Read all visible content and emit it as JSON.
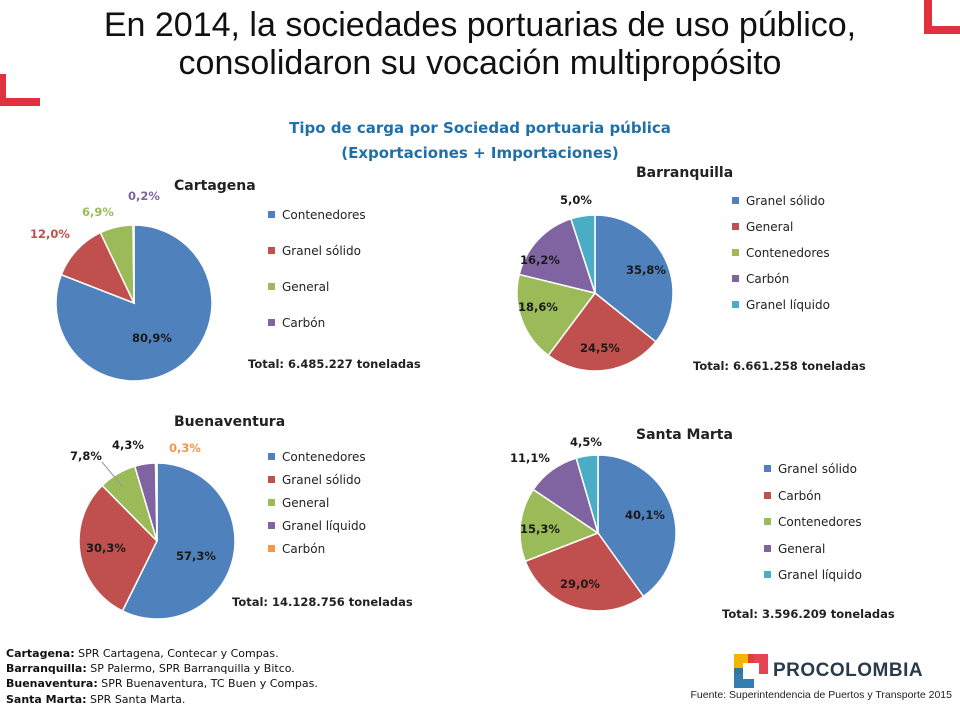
{
  "header": {
    "title_line1": "En 2014, la sociedades portuarias de uso público,",
    "title_line2": "consolidaron su vocación multipropósito",
    "subtitle_line1": "Tipo de carga por Sociedad portuaria pública",
    "subtitle_line2": "(Exportaciones + Importaciones)"
  },
  "colors": {
    "blue": "#4F81BD",
    "red": "#C0504D",
    "green": "#9BBB59",
    "purple": "#8064A2",
    "cyan": "#4BACC6",
    "orange": "#F79646",
    "accent": "#E0313F",
    "subtitle": "#1F6FA8"
  },
  "chart_data": [
    {
      "type": "pie",
      "title": "Cartagena",
      "total": "Total: 6.485.227  toneladas",
      "labels": [
        "Contenedores",
        "Granel sólido",
        "General",
        "Carbón"
      ],
      "values": [
        80.9,
        12.0,
        6.9,
        0.2
      ],
      "value_labels": [
        "80,9%",
        "12,0%",
        "6,9%",
        "0,2%"
      ],
      "colors": [
        "#4F81BD",
        "#C0504D",
        "#9BBB59",
        "#8064A2"
      ]
    },
    {
      "type": "pie",
      "title": "Barranquilla",
      "total": "Total: 6.661.258  toneladas",
      "labels": [
        "Granel sólido",
        "General",
        "Contenedores",
        "Carbón",
        "Granel líquido"
      ],
      "values": [
        35.8,
        24.5,
        18.6,
        16.2,
        5.0
      ],
      "value_labels": [
        "35,8%",
        "24,5%",
        "18,6%",
        "16,2%",
        "5,0%"
      ],
      "colors": [
        "#4F81BD",
        "#C0504D",
        "#9BBB59",
        "#8064A2",
        "#4BACC6"
      ]
    },
    {
      "type": "pie",
      "title": "Buenaventura",
      "total": "Total: 14.128.756  toneladas",
      "labels": [
        "Contenedores",
        "Granel sólido",
        "General",
        "Granel líquido",
        "Carbón"
      ],
      "values": [
        57.3,
        30.3,
        7.8,
        4.3,
        0.3
      ],
      "value_labels": [
        "57,3%",
        "30,3%",
        "7,8%",
        "4,3%",
        "0,3%"
      ],
      "colors": [
        "#4F81BD",
        "#C0504D",
        "#9BBB59",
        "#8064A2",
        "#F79646"
      ]
    },
    {
      "type": "pie",
      "title": "Santa Marta",
      "total": "Total: 3.596.209  toneladas",
      "labels": [
        "Granel sólido",
        "Carbón",
        "Contenedores",
        "General",
        "Granel líquido"
      ],
      "values": [
        40.1,
        29.0,
        15.3,
        11.1,
        4.5
      ],
      "value_labels": [
        "40,1%",
        "29,0%",
        "15,3%",
        "11,1%",
        "4,5%"
      ],
      "colors": [
        "#4F81BD",
        "#C0504D",
        "#9BBB59",
        "#8064A2",
        "#4BACC6"
      ]
    }
  ],
  "notes": [
    {
      "port": "Cartagena:",
      "text": " SPR Cartagena, Contecar y Compas."
    },
    {
      "port": "Barranquilla:",
      "text": " SP Palermo, SPR Barranquilla y Bitco."
    },
    {
      "port": "Buenaventura:",
      "text": " SPR Buenaventura, TC Buen y Compas."
    },
    {
      "port": "Santa Marta:",
      "text": " SPR Santa Marta."
    }
  ],
  "footer": {
    "source": "Fuente: Superintendencia de Puertos y Transporte 2015",
    "brand": "PROCOLOMBIA"
  }
}
